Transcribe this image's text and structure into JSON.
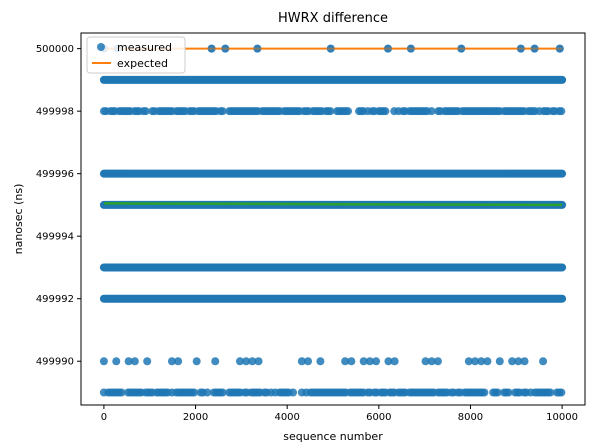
{
  "chart_data": {
    "type": "scatter",
    "title": "HWRX difference",
    "xlabel": "sequence number",
    "ylabel": "nanosec (ns)",
    "xlim": [
      -500,
      10500
    ],
    "ylim": [
      499988.6,
      500000.5
    ],
    "xticks": [
      0,
      2000,
      4000,
      6000,
      8000,
      10000
    ],
    "xtick_labels": [
      "0",
      "2000",
      "4000",
      "6000",
      "8000",
      "10000"
    ],
    "yticks": [
      499990,
      499992,
      499994,
      499996,
      499998,
      500000
    ],
    "ytick_labels": [
      "499990",
      "499992",
      "499994",
      "499996",
      "499998",
      "500000"
    ],
    "legend_position": "top-left",
    "grid": false,
    "series": [
      {
        "name": "measured",
        "kind": "scatter",
        "color": "#1f77b4",
        "bands": [
          {
            "y": 500000,
            "x": [
              0,
              300,
              2350,
              2650,
              3350,
              4950,
              6200,
              6700,
              7800,
              9100,
              9400,
              9950
            ]
          },
          {
            "y": 499999,
            "x_range": [
              0,
              10000
            ],
            "density": "continuous"
          },
          {
            "y": 499998,
            "x_range": [
              0,
              10000
            ],
            "density": "dense-with-gaps"
          },
          {
            "y": 499996,
            "x_range": [
              0,
              10000
            ],
            "density": "continuous"
          },
          {
            "y": 499995,
            "x_range": [
              0,
              10000
            ],
            "density": "continuous"
          },
          {
            "y": 499993,
            "x_range": [
              0,
              10000
            ],
            "density": "continuous"
          },
          {
            "y": 499992,
            "x_range": [
              0,
              10000
            ],
            "density": "continuous"
          },
          {
            "y": 499990,
            "x_range": [
              0,
              9600
            ],
            "density": "sparse"
          },
          {
            "y": 499989,
            "x_range": [
              0,
              10000
            ],
            "density": "dense-with-gaps"
          }
        ]
      },
      {
        "name": "expected",
        "kind": "line",
        "color": "#ff7f0e",
        "points": [
          [
            0,
            500000
          ],
          [
            10000,
            500000
          ]
        ]
      },
      {
        "kind": "line",
        "color": "#2ca02c",
        "points": [
          [
            0,
            499995.05
          ],
          [
            10000,
            499995.0
          ]
        ]
      }
    ]
  }
}
